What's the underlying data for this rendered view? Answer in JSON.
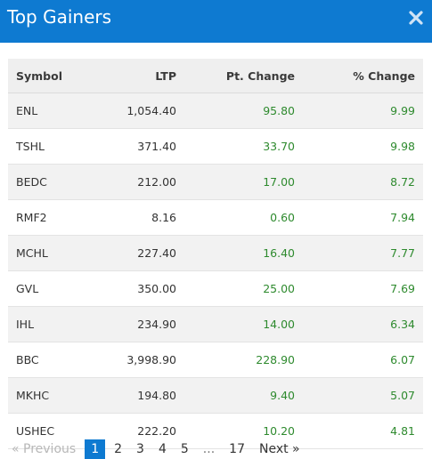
{
  "header": {
    "title": "Top Gainers",
    "close_icon": "close-icon",
    "background": "#0e7ad1"
  },
  "table": {
    "columns": [
      "Symbol",
      "LTP",
      "Pt. Change",
      "% Change"
    ],
    "rows": [
      [
        "ENL",
        "1,054.40",
        "95.80",
        "9.99"
      ],
      [
        "TSHL",
        "371.40",
        "33.70",
        "9.98"
      ],
      [
        "BEDC",
        "212.00",
        "17.00",
        "8.72"
      ],
      [
        "RMF2",
        "8.16",
        "0.60",
        "7.94"
      ],
      [
        "MCHL",
        "227.40",
        "16.40",
        "7.77"
      ],
      [
        "GVL",
        "350.00",
        "25.00",
        "7.69"
      ],
      [
        "IHL",
        "234.90",
        "14.00",
        "6.34"
      ],
      [
        "BBC",
        "3,998.90",
        "228.90",
        "6.07"
      ],
      [
        "MKHC",
        "194.80",
        "9.40",
        "5.07"
      ],
      [
        "USHEC",
        "222.20",
        "10.20",
        "4.81"
      ]
    ],
    "gain_color": "#2e8a2e"
  },
  "pagination": {
    "previous": "« Previous",
    "pages": [
      "1",
      "2",
      "3",
      "4",
      "5"
    ],
    "current": "1",
    "ellipsis": "...",
    "last": "17",
    "next": "Next »"
  }
}
